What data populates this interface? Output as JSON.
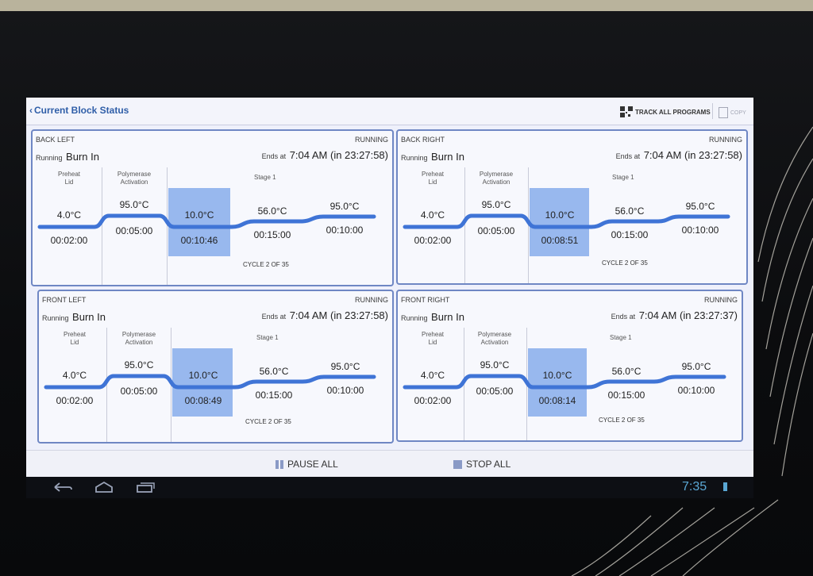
{
  "header": {
    "back_label": "Current Block Status",
    "track_label": "TRACK ALL PROGRAMS",
    "copy_label": "COPY"
  },
  "blocks": [
    {
      "title": "BACK LEFT",
      "status": "RUNNING",
      "running_prefix": "Running",
      "program": "Burn In",
      "ends_prefix": "Ends at",
      "ends_time": "7:04 AM (in 23:27:58)",
      "step1_label": "Preheat\nLid",
      "step2_label": "Polymerase\nActivation",
      "stage_label": "Stage 1",
      "temps": [
        "4.0°C",
        "95.0°C",
        "10.0°C",
        "56.0°C",
        "95.0°C"
      ],
      "durations": [
        "00:02:00",
        "00:05:00",
        "00:10:46",
        "00:15:00",
        "00:10:00"
      ],
      "cycle": "CYCLE 2 OF 35"
    },
    {
      "title": "BACK RIGHT",
      "status": "RUNNING",
      "running_prefix": "Running",
      "program": "Burn In",
      "ends_prefix": "Ends at",
      "ends_time": "7:04 AM (in 23:27:58)",
      "step1_label": "Preheat\nLid",
      "step2_label": "Polymerase\nActivation",
      "stage_label": "Stage 1",
      "temps": [
        "4.0°C",
        "95.0°C",
        "10.0°C",
        "56.0°C",
        "95.0°C"
      ],
      "durations": [
        "00:02:00",
        "00:05:00",
        "00:08:51",
        "00:15:00",
        "00:10:00"
      ],
      "cycle": "CYCLE 2 OF 35"
    },
    {
      "title": "FRONT LEFT",
      "status": "RUNNING",
      "running_prefix": "Running",
      "program": "Burn In",
      "ends_prefix": "Ends at",
      "ends_time": "7:04 AM (in 23:27:58)",
      "step1_label": "Preheat\nLid",
      "step2_label": "Polymerase\nActivation",
      "stage_label": "Stage 1",
      "temps": [
        "4.0°C",
        "95.0°C",
        "10.0°C",
        "56.0°C",
        "95.0°C"
      ],
      "durations": [
        "00:02:00",
        "00:05:00",
        "00:08:49",
        "00:15:00",
        "00:10:00"
      ],
      "cycle": "CYCLE 2 OF 35"
    },
    {
      "title": "FRONT RIGHT",
      "status": "RUNNING",
      "running_prefix": "Running",
      "program": "Burn In",
      "ends_prefix": "Ends at",
      "ends_time": "7:04 AM (in 23:27:37)",
      "step1_label": "Preheat\nLid",
      "step2_label": "Polymerase\nActivation",
      "stage_label": "Stage 1",
      "temps": [
        "4.0°C",
        "95.0°C",
        "10.0°C",
        "56.0°C",
        "95.0°C"
      ],
      "durations": [
        "00:02:00",
        "00:05:00",
        "00:08:14",
        "00:15:00",
        "00:10:00"
      ],
      "cycle": "CYCLE 2 OF 35"
    }
  ],
  "controls": {
    "pause_label": "PAUSE ALL",
    "stop_label": "STOP ALL"
  },
  "statusbar": {
    "clock": "7:35"
  },
  "colors": {
    "accent": "#3f74d6",
    "highlight": "#98b8ee",
    "panel_border": "#6f87c4",
    "clock": "#5aa7d4"
  },
  "icons": [
    "back-chevron-icon",
    "qr-code-icon",
    "copy-icon",
    "pause-icon",
    "stop-icon",
    "back-nav-icon",
    "home-nav-icon",
    "recent-apps-icon",
    "battery-icon"
  ]
}
